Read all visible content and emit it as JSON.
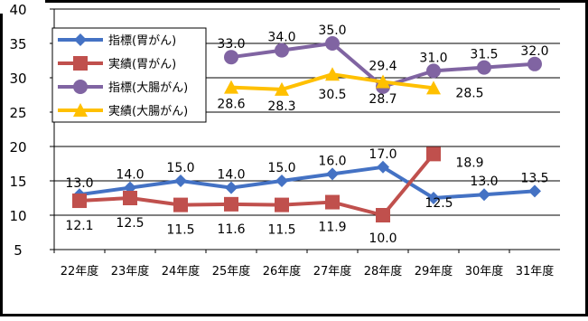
{
  "chart_data": {
    "type": "line",
    "categories": [
      "22年度",
      "23年度",
      "24年度",
      "25年度",
      "26年度",
      "27年度",
      "28年度",
      "29年度",
      "30年度",
      "31年度"
    ],
    "yaxis": {
      "min": 5,
      "max": 40,
      "ticks": [
        5,
        10,
        15,
        20,
        25,
        30,
        35,
        40
      ]
    },
    "grid": true,
    "legend_position": "top-left",
    "series": [
      {
        "name": "指標(胃がん)",
        "color": "#4472c4",
        "marker": "diamond",
        "values": [
          13.0,
          14.0,
          15.0,
          14.0,
          15.0,
          16.0,
          17.0,
          12.5,
          13.0,
          13.5
        ],
        "labels": [
          "13.0",
          "14.0",
          "15.0",
          "14.0",
          "15.0",
          "16.0",
          "17.0",
          "12.5",
          "13.0",
          "13.5"
        ]
      },
      {
        "name": "実績(胃がん)",
        "color": "#c0504d",
        "marker": "square",
        "values": [
          12.1,
          12.5,
          11.5,
          11.6,
          11.5,
          11.9,
          10.0,
          18.9,
          null,
          null
        ],
        "labels": [
          "12.1",
          "12.5",
          "11.5",
          "11.6",
          "11.5",
          "11.9",
          "10.0",
          "18.9",
          null,
          null
        ]
      },
      {
        "name": "指標(大腸がん)",
        "color": "#8064a2",
        "marker": "circle",
        "values": [
          null,
          null,
          null,
          33.0,
          34.0,
          35.0,
          28.7,
          31.0,
          31.5,
          32.0
        ],
        "labels": [
          null,
          null,
          null,
          "33.0",
          "34.0",
          "35.0",
          "28.7",
          "31.0",
          "31.5",
          "32.0"
        ]
      },
      {
        "name": "実績(大腸がん)",
        "color": "#ffc000",
        "marker": "triangle",
        "values": [
          null,
          null,
          null,
          28.6,
          28.3,
          30.5,
          29.4,
          28.5,
          null,
          null
        ],
        "labels": [
          null,
          null,
          null,
          "28.6",
          "28.3",
          "30.5",
          "29.4",
          "28.5",
          null,
          null
        ]
      }
    ]
  }
}
